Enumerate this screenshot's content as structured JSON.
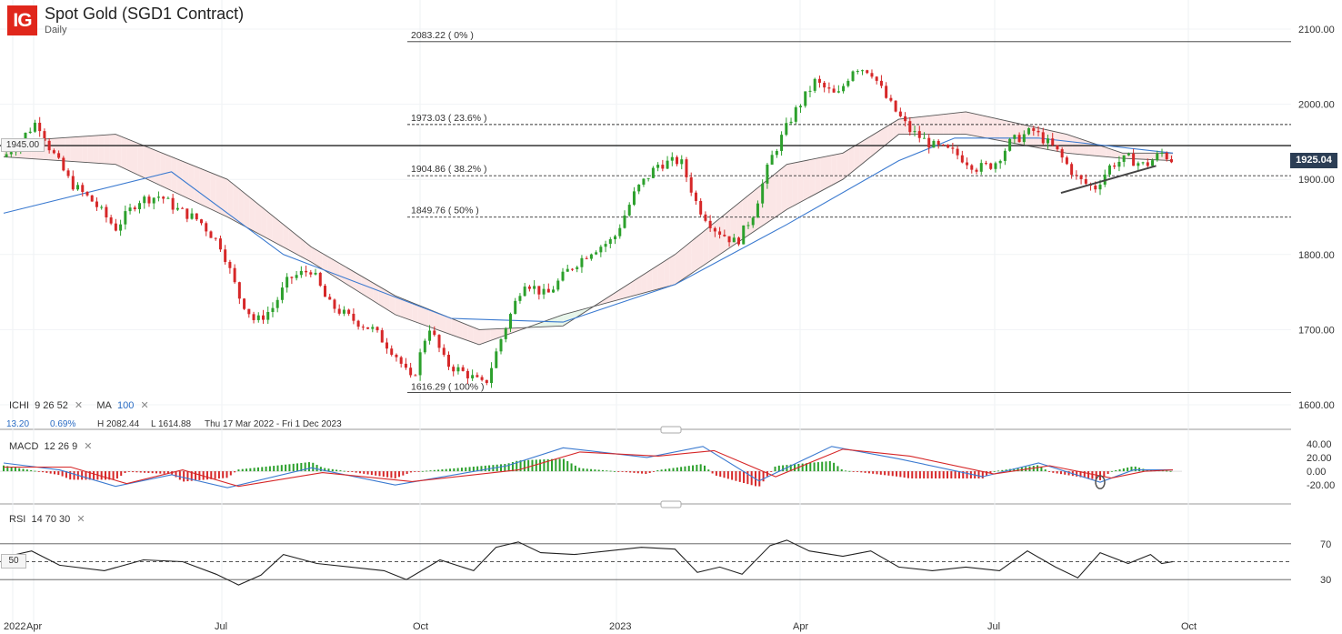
{
  "header": {
    "logo": "IG",
    "title": "Spot Gold (SGD1 Contract)",
    "timeframe": "Daily"
  },
  "legend": {
    "ichi_name": "ICHI",
    "ichi_params": "9  26  52",
    "ma_name": "MA",
    "ma_param": "100",
    "close_glyph": "✕",
    "stat_change": "13.20",
    "stat_pct": "0.69%",
    "stat_high": "H 2082.44",
    "stat_low": "L 1614.88",
    "stat_range": "Thu 17 Mar 2022 - Fri 1 Dec 2023",
    "macd_name": "MACD",
    "macd_params": "12  26  9",
    "rsi_name": "RSI",
    "rsi_params": "14  70  30"
  },
  "tags": {
    "last_price": "1925.04",
    "level": "1945.00",
    "rsi_mid": "50"
  },
  "chart_data": {
    "type": "candlestick",
    "title": "Spot Gold (SGD1 Contract)",
    "timeframe": "Daily",
    "x_tick_labels": [
      "2022",
      "Apr",
      "Jul",
      "Oct",
      "2023",
      "Apr",
      "Jul",
      "Oct"
    ],
    "price_axis": {
      "ticks": [
        "2100.00",
        "2000.00",
        "1900.00",
        "1800.00",
        "1700.00",
        "1600.00"
      ],
      "range": [
        1600,
        2100
      ]
    },
    "last_price": 1925.04,
    "horizontal_level": 1945.0,
    "fibonacci": [
      {
        "label": "2083.22 ( 0% )",
        "value": 2083.22
      },
      {
        "label": "1973.03 ( 23.6% )",
        "value": 1973.03
      },
      {
        "label": "1904.86 ( 38.2% )",
        "value": 1904.86
      },
      {
        "label": "1849.76 ( 50% )",
        "value": 1849.76
      },
      {
        "label": "1616.29 ( 100% )",
        "value": 1616.29
      }
    ],
    "price_path": [
      {
        "t": 0,
        "v": 1930
      },
      {
        "t": 3,
        "v": 1952
      },
      {
        "t": 6,
        "v": 1978
      },
      {
        "t": 8,
        "v": 1945
      },
      {
        "t": 12,
        "v": 1895
      },
      {
        "t": 16,
        "v": 1870
      },
      {
        "t": 20,
        "v": 1835
      },
      {
        "t": 24,
        "v": 1872
      },
      {
        "t": 28,
        "v": 1878
      },
      {
        "t": 31,
        "v": 1860
      },
      {
        "t": 35,
        "v": 1845
      },
      {
        "t": 39,
        "v": 1810
      },
      {
        "t": 42,
        "v": 1745
      },
      {
        "t": 45,
        "v": 1710
      },
      {
        "t": 48,
        "v": 1728
      },
      {
        "t": 51,
        "v": 1768
      },
      {
        "t": 55,
        "v": 1780
      },
      {
        "t": 58,
        "v": 1735
      },
      {
        "t": 62,
        "v": 1715
      },
      {
        "t": 66,
        "v": 1700
      },
      {
        "t": 70,
        "v": 1668
      },
      {
        "t": 73,
        "v": 1630
      },
      {
        "t": 76,
        "v": 1706
      },
      {
        "t": 79,
        "v": 1655
      },
      {
        "t": 83,
        "v": 1640
      },
      {
        "t": 86,
        "v": 1625
      },
      {
        "t": 89,
        "v": 1690
      },
      {
        "t": 93,
        "v": 1765
      },
      {
        "t": 97,
        "v": 1745
      },
      {
        "t": 101,
        "v": 1780
      },
      {
        "t": 105,
        "v": 1805
      },
      {
        "t": 109,
        "v": 1820
      },
      {
        "t": 113,
        "v": 1885
      },
      {
        "t": 117,
        "v": 1920
      },
      {
        "t": 121,
        "v": 1925
      },
      {
        "t": 124,
        "v": 1865
      },
      {
        "t": 127,
        "v": 1835
      },
      {
        "t": 131,
        "v": 1815
      },
      {
        "t": 134,
        "v": 1855
      },
      {
        "t": 137,
        "v": 1925
      },
      {
        "t": 141,
        "v": 1985
      },
      {
        "t": 145,
        "v": 2030
      },
      {
        "t": 149,
        "v": 2010
      },
      {
        "t": 152,
        "v": 2050
      },
      {
        "t": 155,
        "v": 2045
      },
      {
        "t": 158,
        "v": 2005
      },
      {
        "t": 162,
        "v": 1965
      },
      {
        "t": 166,
        "v": 1945
      },
      {
        "t": 170,
        "v": 1935
      },
      {
        "t": 174,
        "v": 1915
      },
      {
        "t": 177,
        "v": 1920
      },
      {
        "t": 180,
        "v": 1950
      },
      {
        "t": 184,
        "v": 1965
      },
      {
        "t": 188,
        "v": 1940
      },
      {
        "t": 192,
        "v": 1900
      },
      {
        "t": 195,
        "v": 1888
      },
      {
        "t": 198,
        "v": 1920
      },
      {
        "t": 201,
        "v": 1928
      },
      {
        "t": 204,
        "v": 1918
      },
      {
        "t": 207,
        "v": 1935
      },
      {
        "t": 209,
        "v": 1925
      }
    ],
    "ma100_path": [
      {
        "t": 0,
        "v": 1855
      },
      {
        "t": 30,
        "v": 1910
      },
      {
        "t": 50,
        "v": 1800
      },
      {
        "t": 80,
        "v": 1715
      },
      {
        "t": 100,
        "v": 1710
      },
      {
        "t": 120,
        "v": 1760
      },
      {
        "t": 140,
        "v": 1840
      },
      {
        "t": 160,
        "v": 1925
      },
      {
        "t": 170,
        "v": 1955
      },
      {
        "t": 185,
        "v": 1955
      },
      {
        "t": 209,
        "v": 1935
      }
    ],
    "cloud_a": [
      {
        "t": 0,
        "v": 1950
      },
      {
        "t": 20,
        "v": 1960
      },
      {
        "t": 40,
        "v": 1900
      },
      {
        "t": 55,
        "v": 1810
      },
      {
        "t": 70,
        "v": 1745
      },
      {
        "t": 85,
        "v": 1700
      },
      {
        "t": 100,
        "v": 1705
      },
      {
        "t": 120,
        "v": 1800
      },
      {
        "t": 140,
        "v": 1920
      },
      {
        "t": 150,
        "v": 1935
      },
      {
        "t": 160,
        "v": 1980
      },
      {
        "t": 172,
        "v": 1990
      },
      {
        "t": 190,
        "v": 1960
      },
      {
        "t": 200,
        "v": 1935
      },
      {
        "t": 209,
        "v": 1935
      }
    ],
    "cloud_b": [
      {
        "t": 0,
        "v": 1930
      },
      {
        "t": 20,
        "v": 1920
      },
      {
        "t": 40,
        "v": 1850
      },
      {
        "t": 55,
        "v": 1790
      },
      {
        "t": 70,
        "v": 1720
      },
      {
        "t": 85,
        "v": 1680
      },
      {
        "t": 100,
        "v": 1720
      },
      {
        "t": 120,
        "v": 1760
      },
      {
        "t": 140,
        "v": 1860
      },
      {
        "t": 150,
        "v": 1900
      },
      {
        "t": 160,
        "v": 1960
      },
      {
        "t": 172,
        "v": 1960
      },
      {
        "t": 190,
        "v": 1935
      },
      {
        "t": 200,
        "v": 1928
      },
      {
        "t": 209,
        "v": 1925
      }
    ],
    "trendline": [
      {
        "t": 189,
        "v": 1882
      },
      {
        "t": 206,
        "v": 1918
      }
    ],
    "macd": {
      "axis_ticks": [
        "40.00",
        "20.00",
        "0.00",
        "-20.00"
      ],
      "range": [
        -25,
        45
      ],
      "macd_line": [
        {
          "t": 0,
          "v": 12
        },
        {
          "t": 10,
          "v": 2
        },
        {
          "t": 20,
          "v": -22
        },
        {
          "t": 30,
          "v": -5
        },
        {
          "t": 40,
          "v": -24
        },
        {
          "t": 55,
          "v": 5
        },
        {
          "t": 70,
          "v": -20
        },
        {
          "t": 90,
          "v": 8
        },
        {
          "t": 100,
          "v": 34
        },
        {
          "t": 115,
          "v": 20
        },
        {
          "t": 125,
          "v": 36
        },
        {
          "t": 135,
          "v": -14
        },
        {
          "t": 148,
          "v": 36
        },
        {
          "t": 160,
          "v": 18
        },
        {
          "t": 175,
          "v": -8
        },
        {
          "t": 185,
          "v": 12
        },
        {
          "t": 196,
          "v": -16
        },
        {
          "t": 202,
          "v": 2
        },
        {
          "t": 209,
          "v": 2
        }
      ],
      "signal_line": [
        {
          "t": 0,
          "v": 6
        },
        {
          "t": 12,
          "v": 6
        },
        {
          "t": 22,
          "v": -18
        },
        {
          "t": 32,
          "v": 2
        },
        {
          "t": 42,
          "v": -22
        },
        {
          "t": 57,
          "v": -2
        },
        {
          "t": 73,
          "v": -15
        },
        {
          "t": 92,
          "v": 2
        },
        {
          "t": 103,
          "v": 28
        },
        {
          "t": 117,
          "v": 22
        },
        {
          "t": 127,
          "v": 30
        },
        {
          "t": 138,
          "v": -8
        },
        {
          "t": 150,
          "v": 32
        },
        {
          "t": 162,
          "v": 22
        },
        {
          "t": 177,
          "v": -4
        },
        {
          "t": 187,
          "v": 8
        },
        {
          "t": 198,
          "v": -10
        },
        {
          "t": 204,
          "v": 0
        },
        {
          "t": 209,
          "v": 2
        }
      ]
    },
    "rsi": {
      "axis_ticks": [
        "70",
        "30"
      ],
      "range": [
        15,
        85
      ],
      "levels": [
        70,
        50,
        30
      ],
      "line": [
        {
          "t": 0,
          "v": 55
        },
        {
          "t": 5,
          "v": 62
        },
        {
          "t": 10,
          "v": 46
        },
        {
          "t": 18,
          "v": 40
        },
        {
          "t": 25,
          "v": 52
        },
        {
          "t": 32,
          "v": 50
        },
        {
          "t": 38,
          "v": 36
        },
        {
          "t": 42,
          "v": 24
        },
        {
          "t": 46,
          "v": 35
        },
        {
          "t": 50,
          "v": 58
        },
        {
          "t": 56,
          "v": 48
        },
        {
          "t": 62,
          "v": 44
        },
        {
          "t": 68,
          "v": 40
        },
        {
          "t": 72,
          "v": 30
        },
        {
          "t": 78,
          "v": 52
        },
        {
          "t": 84,
          "v": 40
        },
        {
          "t": 88,
          "v": 66
        },
        {
          "t": 92,
          "v": 72
        },
        {
          "t": 96,
          "v": 60
        },
        {
          "t": 102,
          "v": 58
        },
        {
          "t": 108,
          "v": 62
        },
        {
          "t": 114,
          "v": 66
        },
        {
          "t": 120,
          "v": 64
        },
        {
          "t": 124,
          "v": 38
        },
        {
          "t": 128,
          "v": 44
        },
        {
          "t": 132,
          "v": 36
        },
        {
          "t": 137,
          "v": 68
        },
        {
          "t": 140,
          "v": 74
        },
        {
          "t": 144,
          "v": 62
        },
        {
          "t": 150,
          "v": 56
        },
        {
          "t": 155,
          "v": 62
        },
        {
          "t": 160,
          "v": 44
        },
        {
          "t": 166,
          "v": 40
        },
        {
          "t": 172,
          "v": 44
        },
        {
          "t": 178,
          "v": 40
        },
        {
          "t": 183,
          "v": 62
        },
        {
          "t": 188,
          "v": 44
        },
        {
          "t": 192,
          "v": 32
        },
        {
          "t": 196,
          "v": 60
        },
        {
          "t": 201,
          "v": 48
        },
        {
          "t": 205,
          "v": 58
        },
        {
          "t": 207,
          "v": 48
        },
        {
          "t": 209,
          "v": 50
        }
      ]
    }
  }
}
